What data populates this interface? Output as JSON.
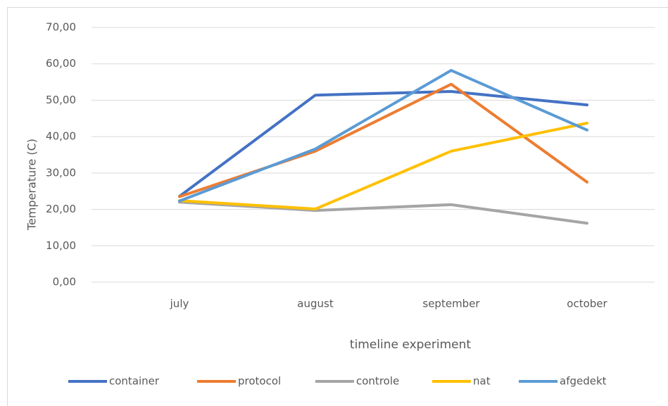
{
  "chart_data": {
    "type": "line",
    "x_label": "timeline experiment",
    "y_label": "Temperature (C)",
    "categories": [
      "july",
      "august",
      "september",
      "october"
    ],
    "series": [
      {
        "name": "container",
        "color": "#4472c4",
        "values": [
          23.6,
          51.4,
          52.4,
          48.7
        ]
      },
      {
        "name": "protocol",
        "color": "#ed7d31",
        "values": [
          23.5,
          36,
          54.4,
          27.5
        ]
      },
      {
        "name": "controle",
        "color": "#a5a5a5",
        "values": [
          22,
          19.7,
          21.3,
          16.2
        ]
      },
      {
        "name": "nat",
        "color": "#ffc000",
        "values": [
          22.4,
          20.1,
          36,
          43.7
        ]
      },
      {
        "name": "afgedekt",
        "color": "#5b9bd5",
        "values": [
          22.3,
          36.6,
          58.2,
          41.8
        ]
      }
    ],
    "ylim": [
      0,
      70
    ],
    "yticks": [
      {
        "value": 0,
        "label": "0,00"
      },
      {
        "value": 10,
        "label": "10,00"
      },
      {
        "value": 20,
        "label": "20,00"
      },
      {
        "value": 30,
        "label": "30,00"
      },
      {
        "value": 40,
        "label": "40,00"
      },
      {
        "value": 50,
        "label": "50,00"
      },
      {
        "value": 60,
        "label": "60,00"
      },
      {
        "value": 70,
        "label": "70,00"
      }
    ],
    "grid": true,
    "legend": "bottom"
  }
}
